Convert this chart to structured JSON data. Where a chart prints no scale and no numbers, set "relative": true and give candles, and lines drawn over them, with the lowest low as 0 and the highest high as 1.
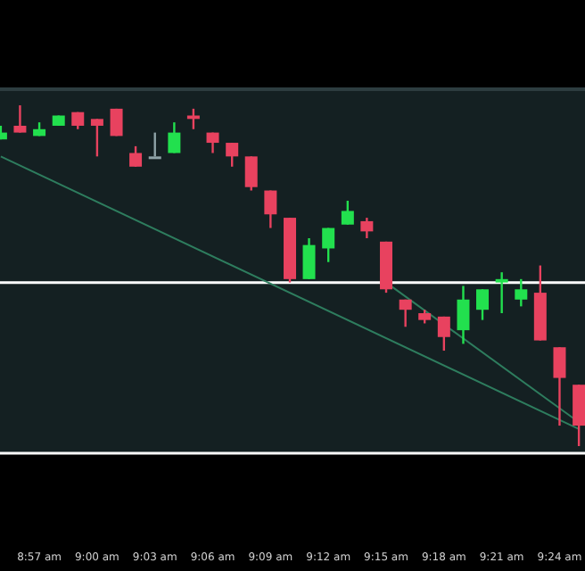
{
  "chart_data": {
    "type": "candlestick",
    "relative": true,
    "x": [
      8.9167,
      8.9333,
      8.95,
      8.9667,
      8.9833,
      9,
      9.0167,
      9.0333,
      9.05,
      9.0667,
      9.0833,
      9.1,
      9.1167,
      9.1333,
      9.15,
      9.1667,
      9.1833,
      9.2,
      9.2167,
      9.2333,
      9.25,
      9.2667,
      9.2833,
      9.3,
      9.3167,
      9.3333,
      9.35,
      9.3667,
      9.3833,
      9.4,
      9.4167
    ],
    "xlim": [
      8.916,
      9.422
    ],
    "xticks": [
      {
        "value": 8.95,
        "label": "8:57 am"
      },
      {
        "value": 9,
        "label": "9:00 am"
      },
      {
        "value": 9.05,
        "label": "9:03 am"
      },
      {
        "value": 9.1,
        "label": "9:06 am"
      },
      {
        "value": 9.15,
        "label": "9:09 am"
      },
      {
        "value": 9.2,
        "label": "9:12 am"
      },
      {
        "value": 9.25,
        "label": "9:15 am"
      },
      {
        "value": 9.3,
        "label": "9:18 am"
      },
      {
        "value": 9.35,
        "label": "9:21 am"
      },
      {
        "value": 9.4,
        "label": "9:24 am"
      }
    ],
    "ohlc": [
      [
        0.9,
        0.94,
        0.9,
        0.92
      ],
      [
        0.94,
        1.0,
        0.92,
        0.92
      ],
      [
        0.91,
        0.95,
        0.91,
        0.93
      ],
      [
        0.94,
        0.97,
        0.94,
        0.97
      ],
      [
        0.98,
        0.98,
        0.93,
        0.94
      ],
      [
        0.96,
        0.96,
        0.85,
        0.94
      ],
      [
        0.99,
        0.99,
        0.91,
        0.91
      ],
      [
        0.86,
        0.88,
        0.82,
        0.82
      ],
      [
        0.85,
        0.92,
        0.85,
        0.85
      ],
      [
        0.86,
        0.95,
        0.86,
        0.92
      ],
      [
        0.97,
        0.99,
        0.93,
        0.96
      ],
      [
        0.92,
        0.92,
        0.86,
        0.89
      ],
      [
        0.89,
        0.89,
        0.82,
        0.85
      ],
      [
        0.85,
        0.85,
        0.75,
        0.76
      ],
      [
        0.75,
        0.75,
        0.64,
        0.68
      ],
      [
        0.67,
        0.67,
        0.48,
        0.49
      ],
      [
        0.49,
        0.61,
        0.49,
        0.59
      ],
      [
        0.58,
        0.64,
        0.54,
        0.64
      ],
      [
        0.65,
        0.72,
        0.65,
        0.69
      ],
      [
        0.66,
        0.67,
        0.61,
        0.63
      ],
      [
        0.6,
        0.6,
        0.45,
        0.46
      ],
      [
        0.43,
        0.43,
        0.35,
        0.4
      ],
      [
        0.39,
        0.4,
        0.36,
        0.37
      ],
      [
        0.38,
        0.38,
        0.28,
        0.32
      ],
      [
        0.34,
        0.47,
        0.3,
        0.43
      ],
      [
        0.4,
        0.46,
        0.37,
        0.46
      ],
      [
        0.48,
        0.51,
        0.39,
        0.49
      ],
      [
        0.43,
        0.49,
        0.41,
        0.46
      ],
      [
        0.45,
        0.53,
        0.31,
        0.31
      ],
      [
        0.29,
        0.29,
        0.06,
        0.2
      ],
      [
        0.18,
        0.18,
        0,
        0.06
      ]
    ],
    "colors": [
      "#22e04e",
      "#e8425f",
      "#22e04e",
      "#22e04e",
      "#e8425f",
      "#e8425f",
      "#e8425f",
      "#e8425f",
      "#8fa3a8",
      "#22e04e",
      "#e8425f",
      "#e8425f",
      "#e8425f",
      "#e8425f",
      "#e8425f",
      "#e8425f",
      "#22e04e",
      "#22e04e",
      "#22e04e",
      "#e8425f",
      "#e8425f",
      "#e8425f",
      "#e8425f",
      "#e8425f",
      "#22e04e",
      "#22e04e",
      "#22e04e",
      "#22e04e",
      "#e8425f",
      "#e8425f",
      "#e8425f"
    ],
    "series": [
      {
        "type": "line",
        "x": [
          8.9167,
          9.4167
        ],
        "values": [
          0.85,
          0.05
        ],
        "color": "#2e7d5e"
      },
      {
        "type": "line",
        "x": [
          9.25,
          9.4167
        ],
        "values": [
          0.48,
          0.07
        ],
        "color": "#2e7d5e"
      }
    ],
    "ref_lines": [
      {
        "axis": "y",
        "value": 0.48,
        "color": "#ffffff"
      }
    ]
  }
}
